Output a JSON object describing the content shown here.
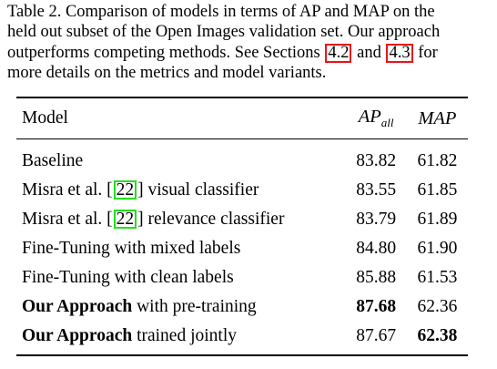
{
  "caption": {
    "line1": "Table 2. Comparison of models in terms of AP and MAP on the",
    "line2": "held out subset of the Open Images validation set. Our approach",
    "line3_before": "outperforms competing methods.  See Sections ",
    "ref_a": "4.2",
    "line3_mid": " and ",
    "ref_b": "4.3",
    "line3_after": " for",
    "line4": "more details on the metrics and model variants."
  },
  "table": {
    "header": {
      "model": "Model",
      "ap_base": "AP",
      "ap_sub": "all",
      "map": "MAP"
    },
    "rows": [
      {
        "bold_prefix": "",
        "model": "Baseline",
        "ap": "83.82",
        "map": "61.82"
      },
      {
        "bold_prefix": "",
        "model_before": "Misra et al. [",
        "ref": "22",
        "model_after": "] visual classifier",
        "ap": "83.55",
        "map": "61.85"
      },
      {
        "bold_prefix": "",
        "model_before": "Misra et al. [",
        "ref": "22",
        "model_after": "] relevance classifier",
        "ap": "83.79",
        "map": "61.89"
      },
      {
        "bold_prefix": "",
        "model": "Fine-Tuning with mixed labels",
        "ap": "84.80",
        "map": "61.90"
      },
      {
        "bold_prefix": "",
        "model": "Fine-Tuning with clean labels",
        "ap": "85.88",
        "map": "61.53"
      },
      {
        "bold_prefix": "Our Approach",
        "model": " with pre-training",
        "ap": "87.68",
        "map": "62.36"
      },
      {
        "bold_prefix": "Our Approach",
        "model": " trained jointly",
        "ap": "87.67",
        "map": "62.38"
      }
    ]
  }
}
